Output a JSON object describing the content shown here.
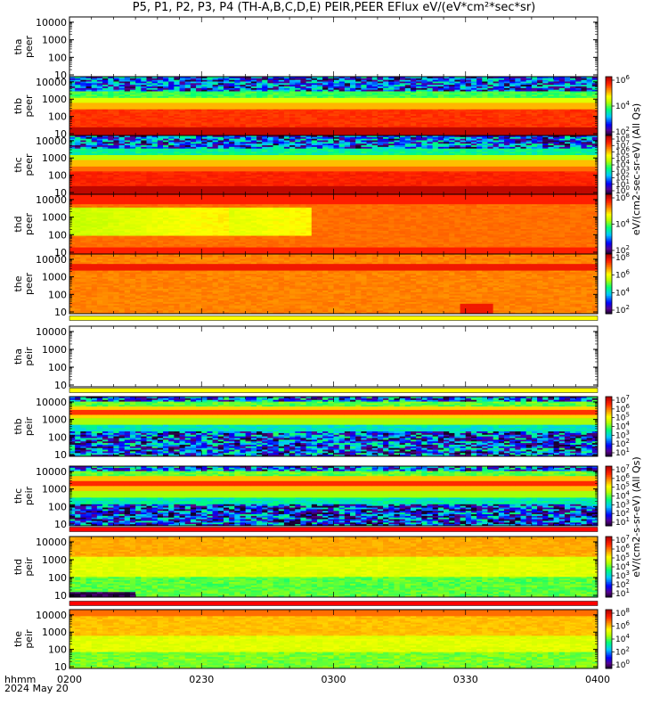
{
  "title": "P5, P1, P2, P3, P4 (TH-A,B,C,D,E) PEIR,PEER EFlux eV/(eV*cm²*sec*sr)",
  "time_axis": {
    "label_line1": "hhmm",
    "label_line2": "2024 May 20",
    "ticks": [
      "0200",
      "0230",
      "0300",
      "0330",
      "0400"
    ],
    "range": [
      "02:00",
      "04:00"
    ]
  },
  "colorbar_labels": {
    "peer_group": "eV/(cm2-sec-sr-eV) (All Qs)",
    "peir_group": "eV/(cm2-s-sr-eV) (All Qs)"
  },
  "colors": {
    "separator_yellow": "#ffff00",
    "separator_red": "#ff0000",
    "colormap": [
      "#2a006e",
      "#0000ff",
      "#00c8ff",
      "#00ff64",
      "#ffff00",
      "#ff8c00",
      "#ff0000",
      "#b40000"
    ]
  },
  "chart_data": [
    {
      "type": "heatmap",
      "panel": "tha_peer",
      "label": [
        "tha",
        "peer"
      ],
      "yscale": "log",
      "ylim": [
        10,
        10000
      ],
      "yticks": [
        "10",
        "100",
        "1000",
        "10000"
      ],
      "has_data": false
    },
    {
      "type": "heatmap",
      "panel": "thb_peer",
      "label": [
        "thb",
        "peer"
      ],
      "yscale": "log",
      "ylim": [
        10,
        10000
      ],
      "yticks": [
        "10",
        "100",
        "1000",
        "10000"
      ],
      "has_data": true,
      "profile": "peer_b",
      "colorbar": {
        "ticks": [
          "10^2",
          "10^4",
          "10^6"
        ]
      }
    },
    {
      "type": "heatmap",
      "panel": "thc_peer",
      "label": [
        "thc",
        "peer"
      ],
      "yscale": "log",
      "ylim": [
        10,
        10000
      ],
      "yticks": [
        "10",
        "100",
        "1000",
        "10000"
      ],
      "has_data": true,
      "profile": "peer_c",
      "colorbar": {
        "ticks": [
          "10^0",
          "10^1",
          "10^2",
          "10^3",
          "10^4",
          "10^5",
          "10^6",
          "10^7",
          "10^8"
        ]
      }
    },
    {
      "type": "heatmap",
      "panel": "thd_peer",
      "label": [
        "thd",
        "peer"
      ],
      "yscale": "log",
      "ylim": [
        10,
        10000
      ],
      "yticks": [
        "10",
        "100",
        "1000",
        "10000"
      ],
      "has_data": true,
      "profile": "peer_d",
      "colorbar": {
        "ticks": [
          "10^2",
          "10^4",
          "10^6"
        ]
      }
    },
    {
      "type": "heatmap",
      "panel": "the_peer",
      "label": [
        "the",
        "peer"
      ],
      "yscale": "log",
      "ylim": [
        10,
        10000
      ],
      "yticks": [
        "10",
        "100",
        "1000",
        "10000"
      ],
      "has_data": true,
      "profile": "peer_e",
      "colorbar": {
        "ticks": [
          "10^2",
          "10^4",
          "10^6",
          "10^8"
        ]
      },
      "separator_after": "yellow"
    },
    {
      "type": "heatmap",
      "panel": "tha_peir",
      "label": [
        "tha",
        "peir"
      ],
      "yscale": "log",
      "ylim": [
        10,
        10000
      ],
      "yticks": [
        "10",
        "100",
        "1000",
        "10000"
      ],
      "has_data": false,
      "separator_after": "yellow"
    },
    {
      "type": "heatmap",
      "panel": "thb_peir",
      "label": [
        "thb",
        "peir"
      ],
      "yscale": "log",
      "ylim": [
        10,
        10000
      ],
      "yticks": [
        "10",
        "100",
        "1000",
        "10000"
      ],
      "has_data": true,
      "profile": "peir_b",
      "colorbar": {
        "ticks": [
          "10^1",
          "10^2",
          "10^3",
          "10^4",
          "10^5",
          "10^6",
          "10^7"
        ]
      }
    },
    {
      "type": "heatmap",
      "panel": "thc_peir",
      "label": [
        "thc",
        "peir"
      ],
      "yscale": "log",
      "ylim": [
        10,
        10000
      ],
      "yticks": [
        "10",
        "100",
        "1000",
        "10000"
      ],
      "has_data": true,
      "profile": "peir_c",
      "colorbar": {
        "ticks": [
          "10^1",
          "10^2",
          "10^3",
          "10^4",
          "10^5",
          "10^6",
          "10^7"
        ]
      },
      "separator_after": "red"
    },
    {
      "type": "heatmap",
      "panel": "thd_peir",
      "label": [
        "thd",
        "peir"
      ],
      "yscale": "log",
      "ylim": [
        10,
        10000
      ],
      "yticks": [
        "10",
        "100",
        "1000",
        "10000"
      ],
      "has_data": true,
      "profile": "peir_d",
      "colorbar": {
        "ticks": [
          "10^1",
          "10^2",
          "10^3",
          "10^4",
          "10^5",
          "10^6",
          "10^7"
        ]
      },
      "separator_after": "red"
    },
    {
      "type": "heatmap",
      "panel": "the_peir",
      "label": [
        "the",
        "peir"
      ],
      "yscale": "log",
      "ylim": [
        10,
        10000
      ],
      "yticks": [
        "10",
        "100",
        "1000",
        "10000"
      ],
      "has_data": true,
      "profile": "peir_e",
      "colorbar": {
        "ticks": [
          "10^0",
          "10^2",
          "10^4",
          "10^6",
          "10^8"
        ]
      }
    }
  ]
}
